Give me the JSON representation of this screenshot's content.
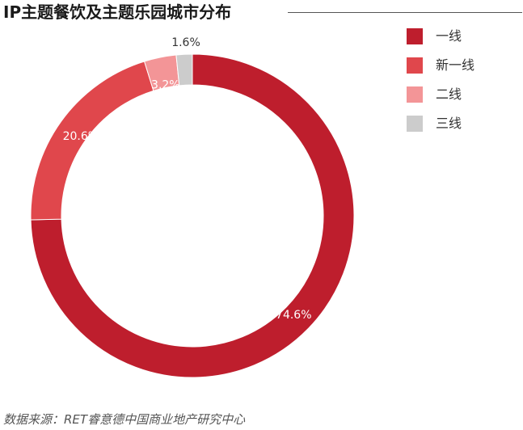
{
  "title": "IP主题餐饮及主题乐园城市分布",
  "source": "数据来源：RET睿意德中国商业地产研究中心",
  "chart_data": {
    "type": "pie",
    "donut": true,
    "categories": [
      "一线",
      "新一线",
      "二线",
      "三线"
    ],
    "values": [
      74.6,
      20.6,
      3.2,
      1.6
    ],
    "value_labels": [
      "74.6%",
      "20.6%",
      "3.2%",
      "1.6%"
    ],
    "colors": [
      "#be1e2d",
      "#e0474c",
      "#f39597",
      "#cccccc"
    ],
    "label_colors": [
      "#ffffff",
      "#ffffff",
      "#ffffff",
      "#333333"
    ],
    "legend_position": "right"
  }
}
